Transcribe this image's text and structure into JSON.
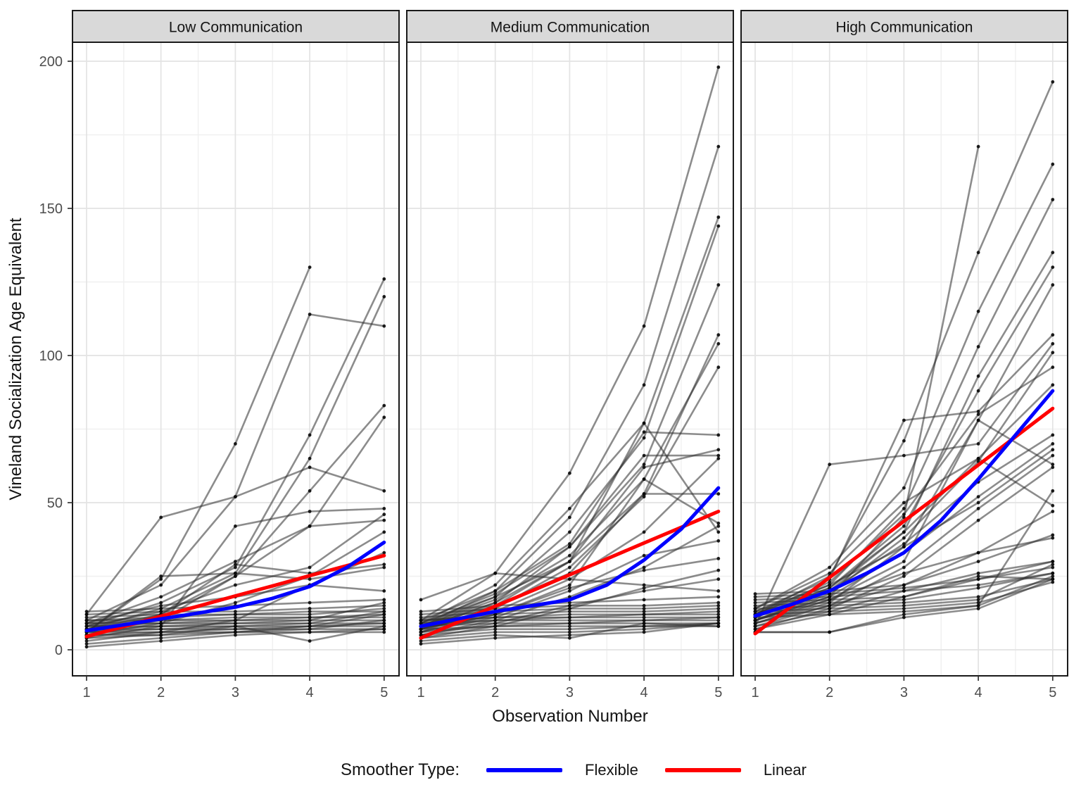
{
  "chart_data": {
    "type": "line",
    "faceted": true,
    "x": [
      1,
      2,
      3,
      4,
      5
    ],
    "x_ticks": [
      1,
      2,
      3,
      4,
      5
    ],
    "y_ticks": [
      0,
      50,
      100,
      150,
      200
    ],
    "ylim": [
      -9,
      207
    ],
    "grid": "major+minor",
    "xlabel": "Observation Number",
    "ylabel": "Vineland Socialization Age Equivalent",
    "line_color": "#2e2e2e",
    "point_color": "#0a0a0a",
    "legend": {
      "title": "Smoother Type:",
      "position": "bottom",
      "entries": [
        {
          "label": "Flexible",
          "color": "#0000ff"
        },
        {
          "label": "Linear",
          "color": "#ff0000"
        }
      ]
    },
    "smoother_x": [
      1,
      1.5,
      2,
      2.5,
      3,
      3.5,
      4,
      4.5,
      5
    ],
    "facets": [
      {
        "label": "Low Communication",
        "smoothers": {
          "flexible": [
            6.5,
            8.5,
            10.5,
            12.5,
            14.5,
            17.5,
            21.5,
            28,
            36.5
          ],
          "linear": [
            4.5,
            7.9,
            11.4,
            14.8,
            18.3,
            21.7,
            25.2,
            28.6,
            32
          ]
        },
        "subjects": [
          [
            6,
            24,
            70,
            130,
            null
          ],
          [
            10,
            22,
            52,
            114,
            110
          ],
          [
            8,
            16,
            28,
            73,
            126
          ],
          [
            7,
            14,
            26,
            65,
            120
          ],
          [
            5,
            12,
            25,
            54,
            83
          ],
          [
            9,
            18,
            30,
            42,
            79
          ],
          [
            12,
            45,
            52,
            62,
            54
          ],
          [
            4,
            8,
            42,
            47,
            48
          ],
          [
            6,
            10,
            25,
            42,
            44
          ],
          [
            5,
            9,
            16,
            25,
            40
          ],
          [
            8,
            13,
            22,
            28,
            46
          ],
          [
            7,
            12,
            29,
            26,
            29
          ],
          [
            6,
            25,
            26,
            24,
            28
          ],
          [
            9,
            15,
            18,
            22,
            33
          ],
          [
            3,
            6,
            10,
            22,
            20
          ],
          [
            12,
            13,
            13,
            14,
            15
          ],
          [
            11,
            12,
            12,
            13,
            13
          ],
          [
            10,
            11,
            12,
            12,
            14
          ],
          [
            10,
            10,
            11,
            11,
            12
          ],
          [
            9,
            10,
            10,
            11,
            11
          ],
          [
            9,
            9,
            10,
            10,
            10
          ],
          [
            8,
            9,
            9,
            10,
            16
          ],
          [
            8,
            8,
            9,
            9,
            9
          ],
          [
            7,
            8,
            8,
            9,
            13
          ],
          [
            7,
            7,
            8,
            8,
            8
          ],
          [
            6,
            7,
            7,
            8,
            12
          ],
          [
            6,
            6,
            7,
            7,
            7
          ],
          [
            5,
            6,
            6,
            7,
            10
          ],
          [
            5,
            5,
            6,
            6,
            6
          ],
          [
            4,
            5,
            8,
            3,
            8
          ],
          [
            2,
            4,
            6,
            8,
            9
          ],
          [
            1,
            3,
            5,
            6,
            7
          ],
          [
            13,
            14,
            15,
            16,
            17
          ]
        ]
      },
      {
        "label": "Medium Communication",
        "smoothers": {
          "flexible": [
            8,
            10.5,
            13,
            15,
            17,
            22,
            30.5,
            41,
            55
          ],
          "linear": [
            4,
            9.4,
            14.8,
            20.1,
            25.5,
            30.9,
            36.3,
            41.6,
            47
          ]
        },
        "subjects": [
          [
            10,
            26,
            60,
            110,
            198
          ],
          [
            8,
            20,
            45,
            90,
            171
          ],
          [
            9,
            22,
            48,
            77,
            147
          ],
          [
            8,
            18,
            40,
            72,
            144
          ],
          [
            7,
            16,
            35,
            63,
            124
          ],
          [
            6,
            15,
            30,
            53,
            107
          ],
          [
            8,
            17,
            32,
            58,
            104
          ],
          [
            7,
            14,
            28,
            52,
            96
          ],
          [
            9,
            19,
            35,
            66,
            66
          ],
          [
            8,
            15,
            26,
            53,
            53
          ],
          [
            10,
            20,
            36,
            74,
            73
          ],
          [
            9,
            18,
            30,
            62,
            68
          ],
          [
            7,
            13,
            24,
            40,
            65
          ],
          [
            6,
            12,
            22,
            58,
            43
          ],
          [
            8,
            16,
            30,
            77,
            40
          ],
          [
            5,
            10,
            18,
            28,
            42
          ],
          [
            6,
            11,
            20,
            32,
            37
          ],
          [
            7,
            12,
            21,
            27,
            31
          ],
          [
            4,
            8,
            14,
            21,
            27
          ],
          [
            5,
            9,
            15,
            20,
            24
          ],
          [
            13,
            15,
            16,
            17,
            18
          ],
          [
            12,
            14,
            15,
            15,
            16
          ],
          [
            11,
            13,
            14,
            14,
            15
          ],
          [
            10,
            12,
            13,
            13,
            14
          ],
          [
            10,
            11,
            12,
            12,
            13
          ],
          [
            9,
            11,
            11,
            12,
            12
          ],
          [
            9,
            10,
            11,
            11,
            11
          ],
          [
            8,
            10,
            10,
            10,
            11
          ],
          [
            8,
            9,
            9,
            10,
            10
          ],
          [
            7,
            8,
            9,
            9,
            9
          ],
          [
            6,
            8,
            8,
            8,
            9
          ],
          [
            5,
            7,
            7,
            8,
            8
          ],
          [
            4,
            6,
            6,
            7,
            9
          ],
          [
            3,
            5,
            4,
            9,
            8
          ],
          [
            2,
            4,
            5,
            6,
            9
          ],
          [
            17,
            26,
            24,
            22,
            20
          ]
        ]
      },
      {
        "label": "High Communication",
        "smoothers": {
          "flexible": [
            11.5,
            15.5,
            20,
            26,
            33,
            44,
            58,
            73,
            88
          ],
          "linear": [
            5.5,
            15,
            24.6,
            34.1,
            43.7,
            53.2,
            62.8,
            72.4,
            82
          ]
        },
        "subjects": [
          [
            12,
            25,
            71,
            135,
            193
          ],
          [
            10,
            18,
            45,
            171,
            null
          ],
          [
            14,
            28,
            55,
            115,
            165
          ],
          [
            12,
            22,
            48,
            103,
            153
          ],
          [
            10,
            20,
            40,
            93,
            135
          ],
          [
            11,
            21,
            42,
            88,
            130
          ],
          [
            9,
            16,
            35,
            78,
            124
          ],
          [
            13,
            24,
            78,
            81,
            107
          ],
          [
            8,
            63,
            66,
            70,
            104
          ],
          [
            10,
            19,
            38,
            64,
            101
          ],
          [
            12,
            23,
            46,
            80,
            96
          ],
          [
            14,
            26,
            50,
            65,
            90
          ],
          [
            11,
            20,
            36,
            57,
            73
          ],
          [
            10,
            18,
            33,
            52,
            70
          ],
          [
            9,
            17,
            30,
            78,
            63
          ],
          [
            12,
            21,
            40,
            65,
            49
          ],
          [
            8,
            15,
            28,
            48,
            66
          ],
          [
            7,
            14,
            25,
            44,
            62
          ],
          [
            13,
            22,
            35,
            50,
            68
          ],
          [
            6,
            6,
            12,
            15,
            54
          ],
          [
            10,
            17,
            26,
            33,
            47
          ],
          [
            9,
            15,
            22,
            30,
            39
          ],
          [
            8,
            13,
            20,
            26,
            30
          ],
          [
            7,
            12,
            18,
            24,
            28
          ],
          [
            18,
            19,
            21,
            24,
            30
          ],
          [
            17,
            18,
            20,
            22,
            26
          ],
          [
            16,
            17,
            18,
            25,
            24
          ],
          [
            15,
            16,
            17,
            21,
            26
          ],
          [
            14,
            15,
            16,
            18,
            24
          ],
          [
            13,
            14,
            15,
            17,
            29
          ],
          [
            12,
            13,
            14,
            16,
            23
          ],
          [
            11,
            12,
            13,
            15,
            25
          ],
          [
            6,
            6,
            11,
            14,
            24
          ],
          [
            19,
            20,
            22,
            33,
            38
          ]
        ]
      }
    ]
  }
}
